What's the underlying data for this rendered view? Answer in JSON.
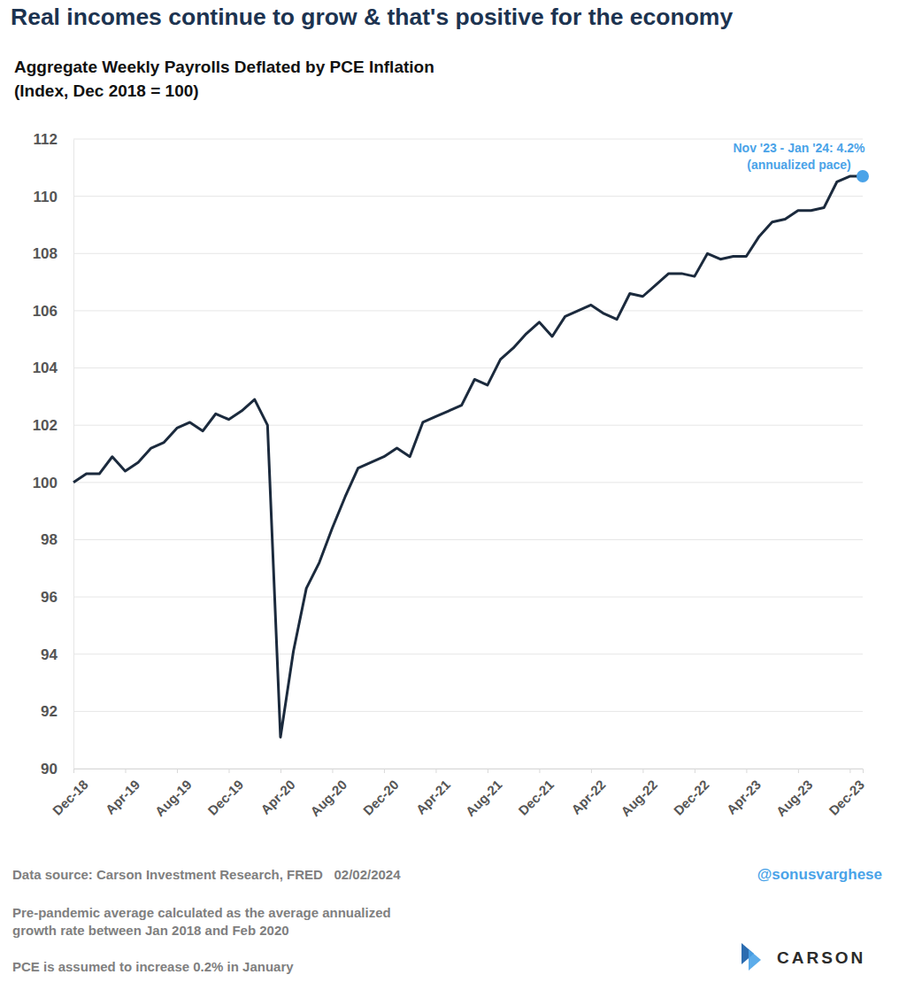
{
  "chart_data": {
    "type": "line",
    "title": "Real incomes continue to grow & that's positive for the economy",
    "subtitle": [
      "Aggregate Weekly Payrolls Deflated by PCE Inflation",
      "(Index, Dec 2018 = 100)"
    ],
    "categories": [
      "Dec-18",
      null,
      null,
      null,
      "Apr-19",
      null,
      null,
      null,
      "Aug-19",
      null,
      null,
      null,
      "Dec-19",
      null,
      null,
      null,
      "Apr-20",
      null,
      null,
      null,
      "Aug-20",
      null,
      null,
      null,
      "Dec-20",
      null,
      null,
      null,
      "Apr-21",
      null,
      null,
      null,
      "Aug-21",
      null,
      null,
      null,
      "Dec-21",
      null,
      null,
      null,
      "Apr-22",
      null,
      null,
      null,
      "Aug-22",
      null,
      null,
      null,
      "Dec-22",
      null,
      null,
      null,
      "Apr-23",
      null,
      null,
      null,
      "Aug-23",
      null,
      null,
      null,
      "Dec-23",
      null
    ],
    "values": [
      100.0,
      100.3,
      100.3,
      100.9,
      100.4,
      100.7,
      101.2,
      101.4,
      101.9,
      102.1,
      101.8,
      102.4,
      102.2,
      102.5,
      102.9,
      102.0,
      91.1,
      94.1,
      96.3,
      97.2,
      98.4,
      99.5,
      100.5,
      100.7,
      100.9,
      101.2,
      100.9,
      102.1,
      102.3,
      102.5,
      102.7,
      103.6,
      103.4,
      104.3,
      104.7,
      105.2,
      105.6,
      105.1,
      105.8,
      106.0,
      106.2,
      105.9,
      105.7,
      106.6,
      106.5,
      106.9,
      107.3,
      107.3,
      107.2,
      108.0,
      107.8,
      107.9,
      107.9,
      108.6,
      109.1,
      109.2,
      109.5,
      109.5,
      109.6,
      110.5,
      110.7,
      110.7
    ],
    "color": "#1b2a3d",
    "ylim": [
      90,
      112
    ],
    "yticks": [
      90,
      92,
      94,
      96,
      98,
      100,
      102,
      104,
      106,
      108,
      110,
      112
    ],
    "grid": true,
    "annotation": {
      "text": [
        "Nov '23 - Jan '24: 4.2%",
        "(annualized pace)"
      ],
      "color": "#4aa3e8"
    },
    "source": "Data source: Carson Investment Research, FRED   02/02/2024",
    "handle": "@sonusvarghese",
    "footnotes": [
      "Pre-pandemic average calculated as the average annualized",
      "growth rate between Jan 2018 and Feb 2020",
      "PCE is assumed to increase 0.2% in January"
    ],
    "logo_text": "CARSON"
  }
}
